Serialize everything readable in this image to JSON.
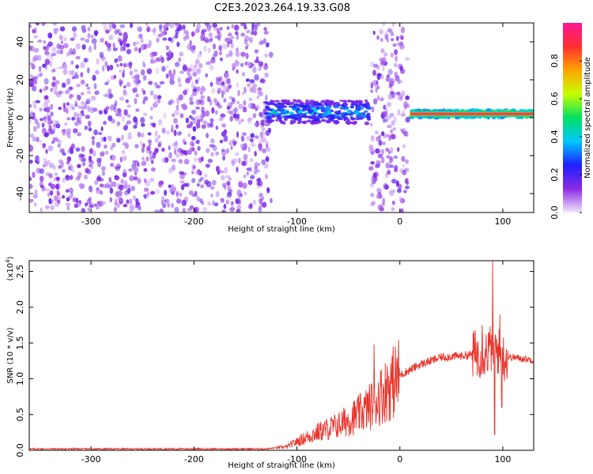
{
  "title": "C2E3.2023.264.19.33.G08",
  "chart_data": [
    {
      "type": "heatmap",
      "xlabel": "Height of straight line (km)",
      "ylabel": "Frequency (Hz)",
      "xlim": [
        -360,
        130
      ],
      "ylim": [
        -50,
        50
      ],
      "xticks": [
        -300,
        -200,
        -100,
        0,
        100
      ],
      "yticks": [
        -40,
        -20,
        0,
        20,
        40
      ],
      "colorbar": {
        "label": "Normalized spectral amplitude",
        "range": [
          0.0,
          1.0
        ],
        "ticks": [
          "0.0",
          "0.2",
          "0.4",
          "0.6",
          "0.8"
        ],
        "colormap": [
          "#f2e6ff",
          "#8a2be2",
          "#1f1fff",
          "#00c8ff",
          "#00e060",
          "#c8ff00",
          "#ffa500",
          "#ff3030",
          "#ff1493"
        ]
      },
      "regions": [
        {
          "x_range": [
            -360,
            -125
          ],
          "description": "broadband noise",
          "freq_center": 0,
          "freq_halfwidth": 50,
          "amplitude": 0.1
        },
        {
          "x_range": [
            -130,
            -30
          ],
          "description": "signal band",
          "freq_center": 3,
          "freq_halfwidth": 6,
          "amplitude": 0.35
        },
        {
          "x_range": [
            -28,
            8
          ],
          "description": "noise band",
          "freq_center": 0,
          "freq_halfwidth": 50,
          "amplitude": 0.1
        },
        {
          "x_range": [
            10,
            130
          ],
          "description": "strong signal line",
          "freq_center": 2,
          "freq_halfwidth": 2,
          "amplitude": 0.9
        }
      ]
    },
    {
      "type": "line",
      "xlabel": "Height of straight line (km)",
      "ylabel": "SNR (10 * v/v)",
      "yscale_label": "(x10",
      "yscale_exp": "4",
      "yscale_close": ")",
      "xlim": [
        -360,
        130
      ],
      "ylim": [
        0,
        2.65
      ],
      "xticks": [
        -300,
        -200,
        -100,
        0,
        100
      ],
      "yticks": [
        "0.0",
        "0.5",
        "1.0",
        "1.5",
        "2.0",
        "2.5"
      ],
      "series_color": "#e8332a",
      "x": [
        -360,
        -300,
        -200,
        -130,
        -110,
        -100,
        -80,
        -60,
        -40,
        -30,
        -20,
        -10,
        0,
        20,
        40,
        60,
        75,
        85,
        90,
        95,
        100,
        110,
        120,
        130
      ],
      "y": [
        0.02,
        0.02,
        0.02,
        0.02,
        0.05,
        0.12,
        0.25,
        0.35,
        0.5,
        0.6,
        0.75,
        0.9,
        1.05,
        1.2,
        1.3,
        1.32,
        1.35,
        1.38,
        1.45,
        1.4,
        1.3,
        1.3,
        1.28,
        1.26
      ],
      "spikes": [
        {
          "x": -25,
          "y": 1.48
        },
        {
          "x": -12,
          "y": 1.1
        },
        {
          "x": 80,
          "y": 1.75
        },
        {
          "x": 90,
          "y": 2.65
        },
        {
          "x": 92,
          "y": 0.22
        },
        {
          "x": 97,
          "y": 1.9
        },
        {
          "x": 99,
          "y": 0.6
        }
      ]
    }
  ]
}
